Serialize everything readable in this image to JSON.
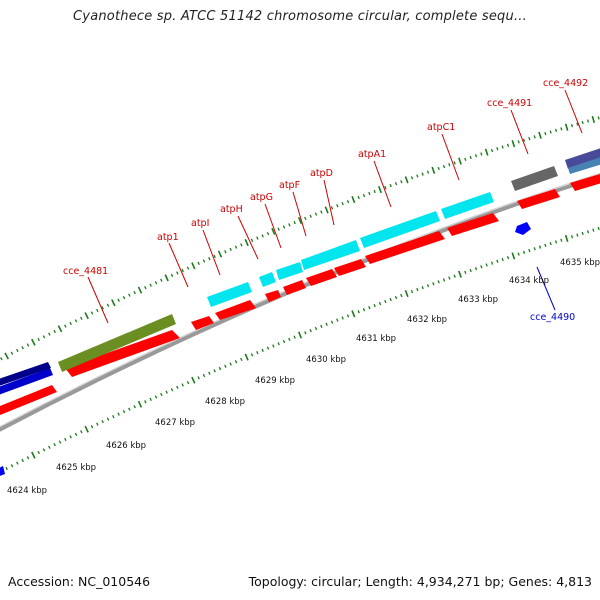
{
  "title": "Cyanothece sp. ATCC 51142 chromosome circular, complete sequ...",
  "footer": {
    "accession": "Accession: NC_010546",
    "summary": "Topology: circular; Length: 4,934,271 bp; Genes: 4,813"
  },
  "colors": {
    "forward_cds": "#ff0000",
    "rrna_trna": "#00e5ee",
    "hypothetical": "#6b8e23",
    "other": "#666666",
    "backbone": "#999999",
    "ticks": "#1a7a1a",
    "label_red": "#cc0000",
    "label_blue": "#0000cc"
  },
  "scale": {
    "tick_labels": [
      "4624 kbp",
      "4625 kbp",
      "4626 kbp",
      "4627 kbp",
      "4628 kbp",
      "4629 kbp",
      "4630 kbp",
      "4631 kbp",
      "4632 kbp",
      "4633 kbp",
      "4634 kbp",
      "4635 kbp"
    ]
  },
  "gene_labels": [
    {
      "name": "cce_4481",
      "color": "red"
    },
    {
      "name": "atp1",
      "color": "red"
    },
    {
      "name": "atpI",
      "color": "red"
    },
    {
      "name": "atpH",
      "color": "red"
    },
    {
      "name": "atpG",
      "color": "red"
    },
    {
      "name": "atpF",
      "color": "red"
    },
    {
      "name": "atpD",
      "color": "red"
    },
    {
      "name": "atpA1",
      "color": "red"
    },
    {
      "name": "atpC1",
      "color": "red"
    },
    {
      "name": "cce_4491",
      "color": "red"
    },
    {
      "name": "cce_4492",
      "color": "red"
    },
    {
      "name": "cce_4490",
      "color": "blue"
    }
  ]
}
